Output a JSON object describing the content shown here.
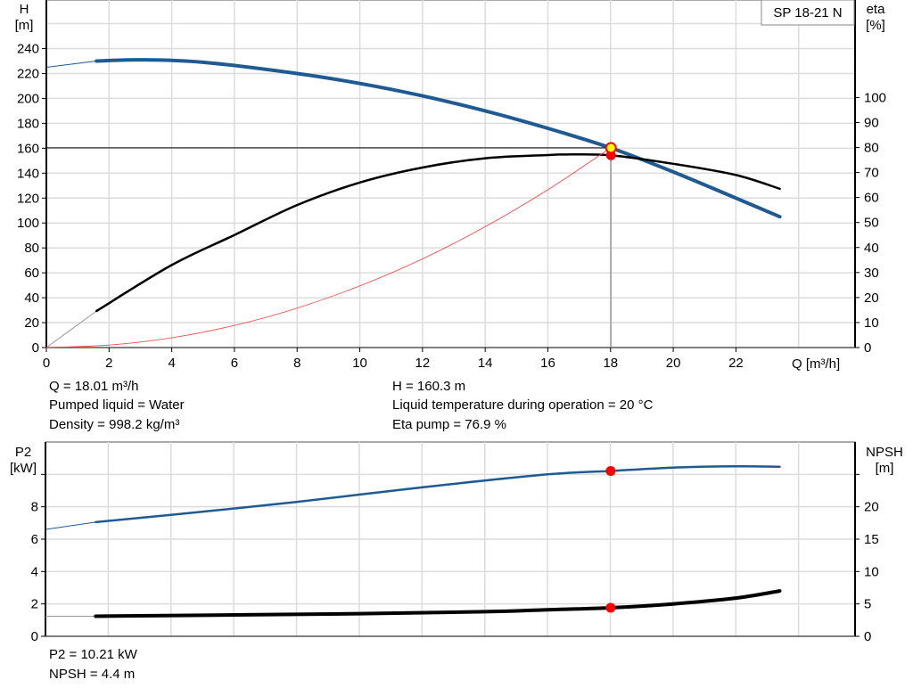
{
  "chart_data": [
    {
      "type": "line",
      "legend": "SP 18-21 N",
      "legend_placement": "top-right",
      "xlabel": "Q [m³/h]",
      "xlim": [
        0,
        25.8
      ],
      "xticks": [
        0,
        2,
        4,
        6,
        8,
        10,
        12,
        14,
        16,
        18,
        20,
        22
      ],
      "ylabel_left": "H",
      "ylabel_left_unit": "[m]",
      "ylim_left": [
        0,
        279
      ],
      "yticks_left": [
        0,
        20,
        40,
        60,
        80,
        100,
        120,
        140,
        160,
        180,
        200,
        220,
        240
      ],
      "ylabel_right": "eta",
      "ylabel_right_unit": "[%]",
      "ylim_right": [
        0,
        139
      ],
      "yticks_right": [
        0,
        10,
        20,
        30,
        40,
        50,
        60,
        70,
        80,
        90,
        100
      ],
      "grid": true,
      "min_operating_q": 1.6,
      "series": [
        {
          "id": "H",
          "axis": "left",
          "color": "#1f5a92",
          "x": [
            0,
            1.6,
            3,
            5,
            8,
            10,
            12,
            14,
            16,
            18,
            20,
            22,
            23.4
          ],
          "y": [
            225,
            230,
            231,
            229,
            220,
            212,
            202,
            190,
            176,
            160.3,
            141,
            120,
            105
          ]
        },
        {
          "id": "eta",
          "axis": "right",
          "color": "#000000",
          "x": [
            0,
            1.6,
            4,
            6,
            8,
            10,
            12,
            14,
            16,
            16.5,
            18,
            20,
            22,
            23.4
          ],
          "y": [
            0,
            14.6,
            33,
            45,
            57,
            66,
            72,
            75.7,
            77,
            77.2,
            76.9,
            73.5,
            69,
            63.5
          ]
        },
        {
          "id": "system",
          "axis": "left",
          "color": "#ff4040",
          "x": [
            0,
            2,
            4,
            6,
            8,
            10,
            12,
            14,
            16,
            18
          ],
          "y": [
            0,
            2,
            7.9,
            17.8,
            31.7,
            49.5,
            71.2,
            97,
            126.7,
            160.3
          ]
        }
      ],
      "operating_point": {
        "q": 18.01,
        "h": 160.3,
        "eta": 76.9
      },
      "point_colors": {
        "duty": "#ffff00",
        "duty_border": "#ff0000",
        "eta": "#ff0000"
      }
    },
    {
      "type": "line",
      "xlim": [
        0,
        25.8
      ],
      "ylabel_left": "P2",
      "ylabel_left_unit": "[kW]",
      "ylim_left": [
        0,
        12
      ],
      "yticks_left": [
        0,
        2,
        4,
        6,
        8
      ],
      "ylabel_right": "NPSH",
      "ylabel_right_unit": "[m]",
      "ylim_right": [
        0,
        30
      ],
      "yticks_right": [
        0,
        5,
        10,
        15,
        20
      ],
      "grid": true,
      "min_operating_q": 1.6,
      "series": [
        {
          "id": "P2",
          "axis": "left",
          "color": "#1f5a92",
          "x": [
            0,
            1.6,
            4,
            8,
            12,
            16,
            18,
            20,
            22,
            23.4
          ],
          "y": [
            6.6,
            7.05,
            7.5,
            8.3,
            9.2,
            10.0,
            10.21,
            10.42,
            10.5,
            10.47
          ]
        },
        {
          "id": "NPSH",
          "axis": "right",
          "color": "#000000",
          "x": [
            0,
            1.6,
            6,
            10,
            14,
            16,
            18,
            20,
            22,
            23.4
          ],
          "y": [
            3.1,
            3.1,
            3.3,
            3.5,
            3.8,
            4.1,
            4.4,
            5.0,
            5.9,
            7.0
          ]
        }
      ],
      "operating_point": {
        "q": 18.01,
        "p2": 10.21,
        "npsh": 4.4
      },
      "point_colors": {
        "marker": "#ff0000"
      }
    }
  ],
  "info_top": {
    "q": "Q = 18.01 m³/h",
    "liquid": "Pumped liquid = Water",
    "density": "Density = 998.2 kg/m³",
    "h": "H = 160.3 m",
    "temperature": "Liquid temperature during operation = 20 °C",
    "eta": "Eta pump = 76.9 %"
  },
  "info_bottom": {
    "p2": "P2 = 10.21 kW",
    "npsh": "NPSH = 4.4 m"
  }
}
